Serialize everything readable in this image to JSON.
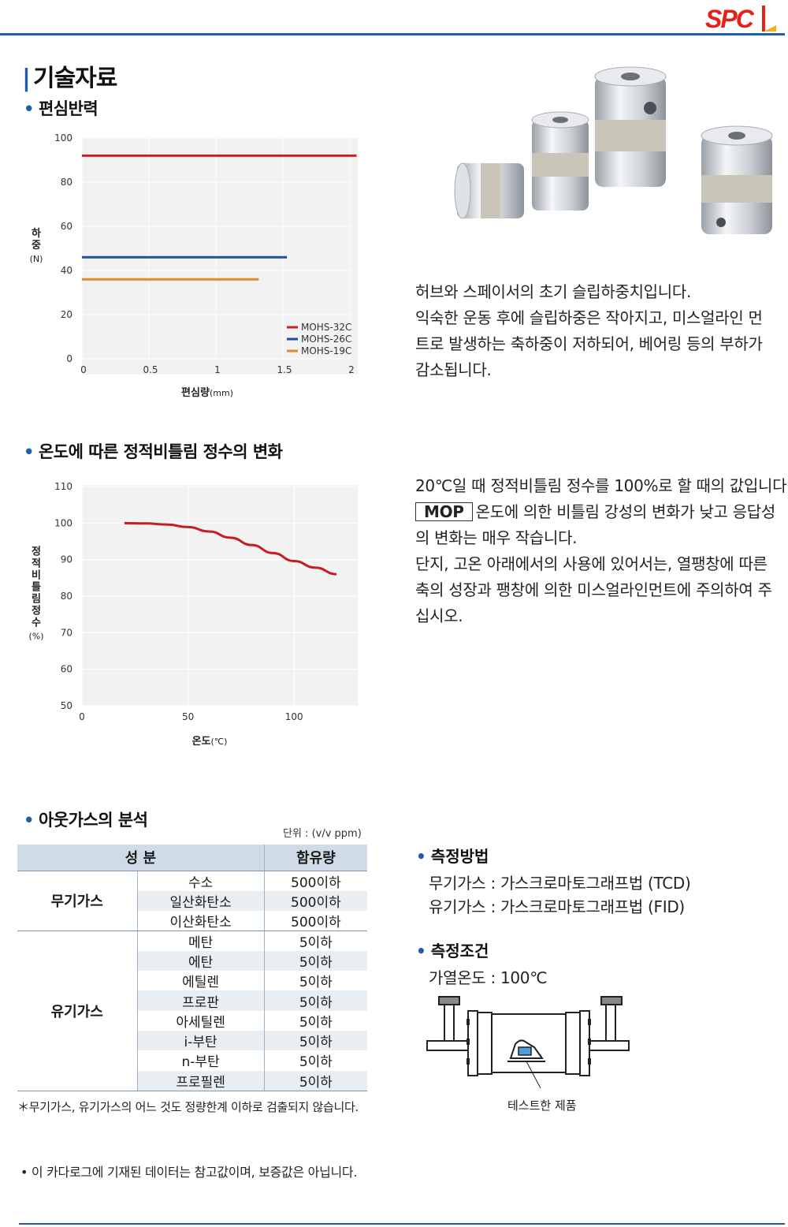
{
  "brand": {
    "logo_text": "SPC",
    "color": "#e2231a",
    "accent": "#1f5fa8"
  },
  "page_title": "기술자료",
  "sections": {
    "eccentric": "편심반력",
    "temperature": "온도에 따른 정적비틀림 정수의 변화",
    "outgas": "아웃가스의 분석"
  },
  "chart_data": [
    {
      "type": "line",
      "xlabel_main": "편심량",
      "xlabel_unit": "(mm)",
      "ylabel_chars": [
        "하",
        "중"
      ],
      "ylabel_unit": "(N)",
      "xlim": [
        0,
        2
      ],
      "ylim": [
        0,
        100
      ],
      "x_ticks": [
        "0",
        "0.5",
        "1",
        "1.5",
        "2"
      ],
      "y_ticks": [
        "100",
        "80",
        "60",
        "40",
        "20",
        "0"
      ],
      "series": [
        {
          "name": "MOHS-32C",
          "color": "#cc1f26",
          "x": [
            0,
            2.05
          ],
          "y": [
            92,
            92
          ]
        },
        {
          "name": "MOHS-26C",
          "color": "#1f4f9b",
          "x": [
            0,
            1.53
          ],
          "y": [
            46,
            46
          ]
        },
        {
          "name": "MOHS-19C",
          "color": "#e08a2c",
          "x": [
            0,
            1.32
          ],
          "y": [
            36,
            36
          ]
        }
      ],
      "legend_position": "bottom-right",
      "grid": true
    },
    {
      "type": "line",
      "xlabel_main": "온도",
      "xlabel_unit": "(℃)",
      "ylabel_chars": [
        "정",
        "적",
        "비",
        "틀",
        "림",
        "정",
        "수"
      ],
      "ylabel_unit": "(%)",
      "xlim": [
        0,
        130
      ],
      "ylim": [
        50,
        110
      ],
      "x_ticks": [
        "0",
        "50",
        "100"
      ],
      "y_ticks": [
        "110",
        "100",
        "90",
        "80",
        "70",
        "60",
        "50"
      ],
      "series": [
        {
          "color": "#c41e24",
          "x": [
            20,
            30,
            40,
            50,
            60,
            70,
            80,
            90,
            100,
            110,
            120
          ],
          "y": [
            100,
            99.9,
            99.6,
            98.9,
            97.7,
            96,
            94,
            91.8,
            89.6,
            87.8,
            86
          ]
        }
      ],
      "grid": true
    }
  ],
  "paragraphs": {
    "eccentric": [
      "허브와 스페이서의 초기 슬립하중치입니다.",
      "익숙한 운동 후에 슬립하중은 작아지고, 미스얼라인 먼",
      "트로 발생하는 축하중이 저하되어, 베어링 등의 부하가",
      "감소됩니다."
    ],
    "temp_line1": "20℃일 때 정적비틀림 정수를 100%로 할 때의 값입니다.",
    "mop_label": "MOP",
    "temp_line2": "온도에 의한 비틀림 강성의 변화가 낮고 응답성",
    "temp_rest": [
      "의 변화는 매우 작습니다.",
      "단지, 고온 아래에서의 사용에 있어서는, 열팽창에 따른",
      "축의 성장과 팽창에 의한 미스얼라인먼트에 주의하여 주",
      "십시오."
    ]
  },
  "table": {
    "unit": "단위 : (v/v ppm)",
    "headers": [
      "성 분",
      "함유량"
    ],
    "groups": [
      {
        "name": "무기가스",
        "rows": [
          [
            "수소",
            "500이하"
          ],
          [
            "일산화탄소",
            "500이하"
          ],
          [
            "이산화탄소",
            "500이하"
          ]
        ]
      },
      {
        "name": "유기가스",
        "rows": [
          [
            "메탄",
            "5이하"
          ],
          [
            "에탄",
            "5이하"
          ],
          [
            "에틸렌",
            "5이하"
          ],
          [
            "프로판",
            "5이하"
          ],
          [
            "아세틸렌",
            "5이하"
          ],
          [
            "i-부탄",
            "5이하"
          ],
          [
            "n-부탄",
            "5이하"
          ],
          [
            "프로필렌",
            "5이하"
          ]
        ]
      }
    ],
    "footnote": "＊무기가스, 유기가스의 어느 것도 정량한계 이하로 검출되지 않습니다."
  },
  "measurement": {
    "method_title": "측정방법",
    "method_lines": [
      "무기가스 : 가스크로마토그래프법 (TCD)",
      "유기가스 : 가스크로마토그래프법 (FID)"
    ],
    "condition_title": "측정조건",
    "condition_line": "가열온도 : 100℃",
    "caption": "테스트한 제품"
  },
  "disclaimer": "• 이 카다로그에 기재된 데이터는 참고값이며, 보증값은 아닙니다."
}
